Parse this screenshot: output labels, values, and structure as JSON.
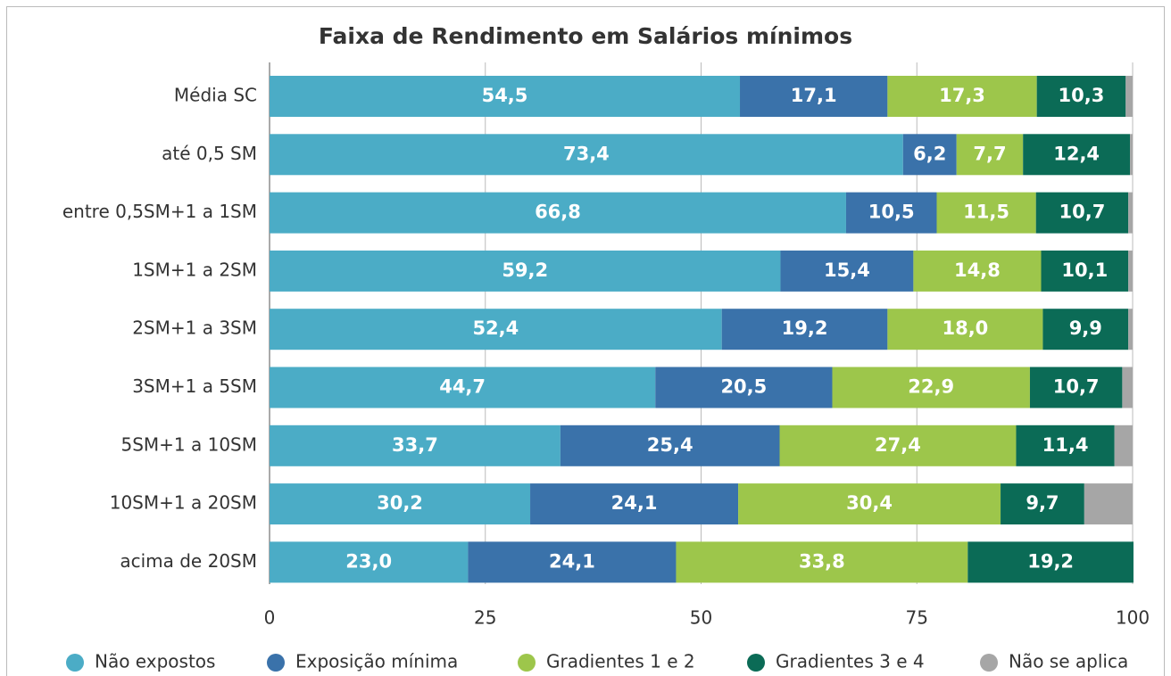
{
  "chart_data": {
    "type": "stacked-barh",
    "title": "Faixa de Rendimento em Salários mínimos",
    "categories": [
      "Média SC",
      "até 0,5 SM",
      "entre 0,5SM+1 a 1SM",
      "1SM+1 a 2SM",
      "2SM+1 a 3SM",
      "3SM+1 a 5SM",
      "5SM+1 a 10SM",
      "10SM+1 a 20SM",
      "acima de 20SM"
    ],
    "series": [
      {
        "name": "Não expostos",
        "color": "#4bacc6",
        "values": [
          54.5,
          73.4,
          66.8,
          59.2,
          52.4,
          44.7,
          33.7,
          30.2,
          23.0
        ],
        "value_labels": [
          "54,5",
          "73,4",
          "66,8",
          "59,2",
          "52,4",
          "44,7",
          "33,7",
          "30,2",
          "23,0"
        ]
      },
      {
        "name": "Exposição mínima",
        "color": "#3a72aa",
        "values": [
          17.1,
          6.2,
          10.5,
          15.4,
          19.2,
          20.5,
          25.4,
          24.1,
          24.1
        ],
        "value_labels": [
          "17,1",
          "6,2",
          "10,5",
          "15,4",
          "19,2",
          "20,5",
          "25,4",
          "24,1",
          "24,1"
        ]
      },
      {
        "name": "Gradientes 1 e 2",
        "color": "#9dc64b",
        "values": [
          17.3,
          7.7,
          11.5,
          14.8,
          18.0,
          22.9,
          27.4,
          30.4,
          33.8
        ],
        "value_labels": [
          "17,3",
          "7,7",
          "11,5",
          "14,8",
          "18,0",
          "22,9",
          "27,4",
          "30,4",
          "33,8"
        ]
      },
      {
        "name": "Gradientes 3 e 4",
        "color": "#0b6b56",
        "values": [
          10.3,
          12.4,
          10.7,
          10.1,
          9.9,
          10.7,
          11.4,
          9.7,
          19.2
        ],
        "value_labels": [
          "10,3",
          "12,4",
          "10,7",
          "10,1",
          "9,9",
          "10,7",
          "11,4",
          "9,7",
          "19,2"
        ]
      },
      {
        "name": "Não se aplica",
        "color": "#a6a6a6",
        "values": [
          0.8,
          0.3,
          0.5,
          0.5,
          0.5,
          1.2,
          2.1,
          5.6,
          0
        ]
      }
    ],
    "xlim": [
      0,
      100
    ],
    "xticks": [
      0,
      25,
      50,
      75,
      100
    ],
    "grid": true
  }
}
